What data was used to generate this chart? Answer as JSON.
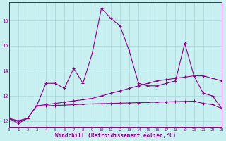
{
  "x": [
    0,
    1,
    2,
    3,
    4,
    5,
    6,
    7,
    8,
    9,
    10,
    11,
    12,
    13,
    14,
    15,
    16,
    17,
    18,
    19,
    20,
    21,
    22,
    23
  ],
  "line1": [
    12.1,
    11.9,
    12.1,
    12.6,
    13.5,
    13.5,
    13.3,
    14.1,
    13.5,
    14.7,
    16.5,
    16.1,
    15.8,
    14.8,
    13.5,
    13.4,
    13.4,
    13.5,
    13.6,
    15.1,
    13.8,
    13.1,
    13.0,
    12.5
  ],
  "line2": [
    12.1,
    12.0,
    12.1,
    12.6,
    12.65,
    12.7,
    12.75,
    12.8,
    12.85,
    12.9,
    13.0,
    13.1,
    13.2,
    13.3,
    13.4,
    13.5,
    13.6,
    13.65,
    13.7,
    13.75,
    13.8,
    13.8,
    13.7,
    13.6
  ],
  "line3": [
    12.1,
    12.0,
    12.1,
    12.6,
    12.6,
    12.62,
    12.63,
    12.65,
    12.67,
    12.68,
    12.69,
    12.7,
    12.71,
    12.72,
    12.73,
    12.74,
    12.75,
    12.76,
    12.77,
    12.78,
    12.79,
    12.7,
    12.65,
    12.5
  ],
  "line_color": "#8B008B",
  "bg_color": "#c8f0f0",
  "grid_color": "#a8d8d8",
  "xlabel": "Windchill (Refroidissement éolien,°C)",
  "ylabel_ticks": [
    12,
    13,
    14,
    15,
    16
  ],
  "xlim": [
    0,
    23
  ],
  "ylim": [
    11.75,
    16.75
  ]
}
